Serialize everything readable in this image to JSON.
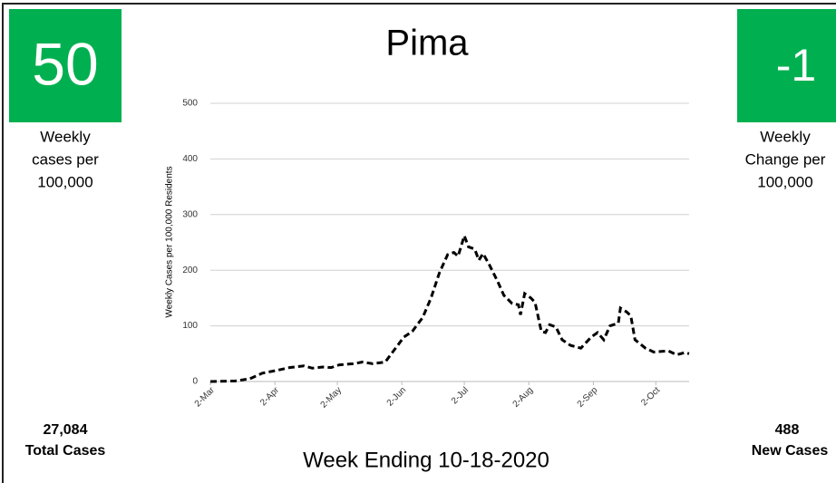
{
  "left_panel": {
    "value": "50",
    "caption": [
      "Weekly",
      "cases per",
      "100,000"
    ],
    "total_value": "27,084",
    "total_label": "Total Cases"
  },
  "right_panel": {
    "value": "-1",
    "caption": [
      "Weekly",
      "Change per",
      "100,000"
    ],
    "total_value": "488",
    "total_label": "New Cases"
  },
  "footer": "Week Ending 10-18-2020",
  "chart_data": {
    "type": "line",
    "title": "Pima",
    "y_label": "Weekly Cases per 100,000 Residents",
    "x": [
      0,
      12,
      19,
      25,
      32,
      38,
      45,
      49,
      54,
      58,
      62,
      69,
      73,
      78,
      84,
      89,
      93,
      97,
      102,
      106,
      110,
      114,
      117,
      119,
      122,
      124,
      127,
      129,
      131,
      134,
      138,
      141,
      145,
      148,
      149,
      151,
      154,
      156,
      159,
      161,
      163,
      166,
      169,
      173,
      178,
      183,
      186,
      189,
      192,
      196,
      197,
      200,
      202,
      204,
      209,
      213,
      220,
      224,
      228,
      230
    ],
    "series": [
      {
        "name": "Weekly Cases per 100,000 Residents",
        "color": "#000000",
        "values": [
          0,
          1,
          5,
          15,
          20,
          25,
          28,
          24,
          26,
          25,
          30,
          32,
          35,
          32,
          35,
          60,
          80,
          90,
          115,
          150,
          195,
          228,
          232,
          225,
          262,
          242,
          238,
          218,
          230,
          210,
          180,
          155,
          140,
          138,
          120,
          158,
          150,
          142,
          90,
          88,
          102,
          98,
          75,
          65,
          60,
          80,
          88,
          75,
          100,
          105,
          132,
          125,
          118,
          75,
          60,
          53,
          55,
          48,
          52,
          50
        ]
      }
    ],
    "xlim": [
      0,
      230
    ],
    "xticks": [
      {
        "value": 0,
        "label": "2-Mar"
      },
      {
        "value": 31,
        "label": "2-Apr"
      },
      {
        "value": 61,
        "label": "2-May"
      },
      {
        "value": 92,
        "label": "2-Jun"
      },
      {
        "value": 122,
        "label": "2-Jul"
      },
      {
        "value": 153,
        "label": "2-Aug"
      },
      {
        "value": 184,
        "label": "2-Sep"
      },
      {
        "value": 214,
        "label": "2-Oct"
      }
    ],
    "ylim": [
      0,
      500
    ],
    "yticks": [
      0,
      100,
      200,
      300,
      400,
      500
    ],
    "grid": true
  }
}
